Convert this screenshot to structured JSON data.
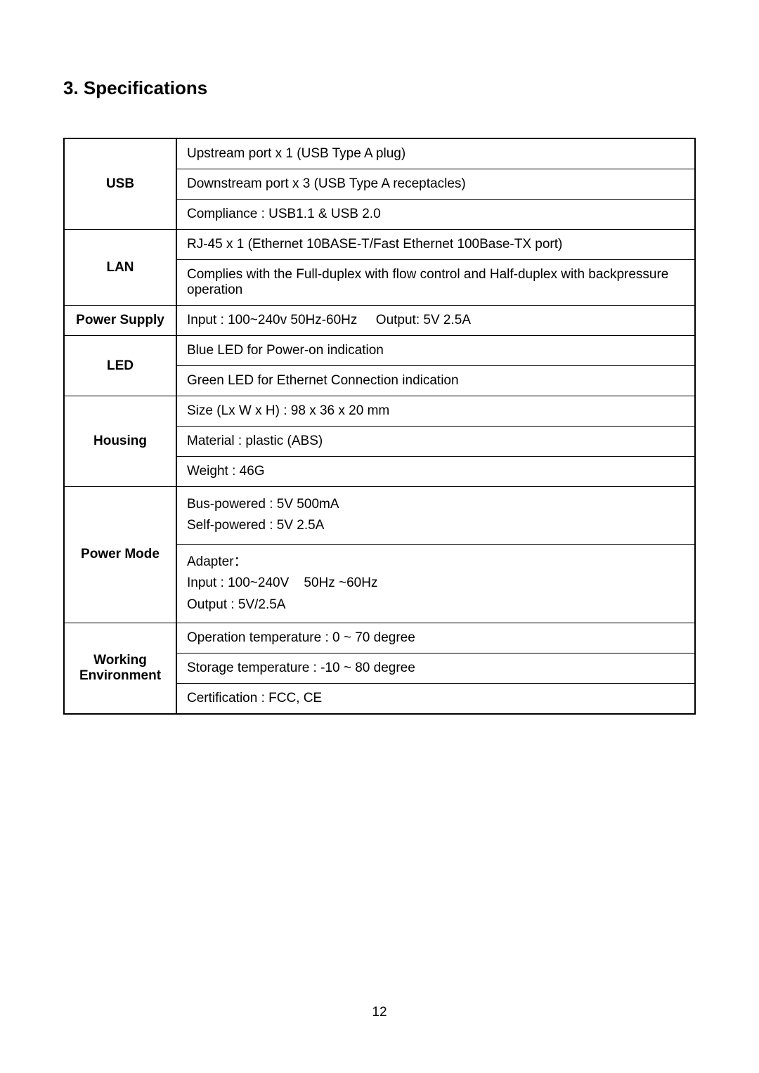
{
  "section_title": "3. Specifications",
  "page_number": "12",
  "table": {
    "border_color": "#000000",
    "background_color": "#ffffff",
    "text_color": "#000000",
    "label_font_weight": "bold",
    "rows": [
      {
        "label": "USB",
        "values": [
          "Upstream port x 1 (USB Type A plug)",
          "Downstream port x 3 (USB Type A receptacles)",
          "Compliance : USB1.1 & USB 2.0"
        ]
      },
      {
        "label": "LAN",
        "values": [
          "RJ-45 x 1 (Ethernet 10BASE-T/Fast Ethernet 100Base-TX port)",
          "Complies with the Full-duplex with flow control and Half-duplex with backpressure operation"
        ]
      },
      {
        "label": "Power Supply",
        "values": [
          "Input : 100~240v 50Hz-60Hz     Output: 5V 2.5A"
        ]
      },
      {
        "label": "LED",
        "values": [
          "Blue LED for Power-on indication",
          "Green LED for Ethernet Connection indication"
        ]
      },
      {
        "label": "Housing",
        "values": [
          "Size (Lx W x H) : 98 x 36 x 20 mm",
          "Material : plastic (ABS)",
          "Weight : 46G"
        ]
      },
      {
        "label": "Power Mode",
        "values": [
          "Bus-powered : 5V 500mA\nSelf-powered : 5V 2.5A",
          "Adapter：\nInput : 100~240V    50Hz ~60Hz\nOutput : 5V/2.5A"
        ]
      },
      {
        "label": "Working\nEnvironment",
        "values": [
          "Operation temperature : 0 ~ 70 degree",
          "Storage temperature : -10 ~ 80 degree",
          "Certification : FCC, CE"
        ]
      }
    ]
  }
}
